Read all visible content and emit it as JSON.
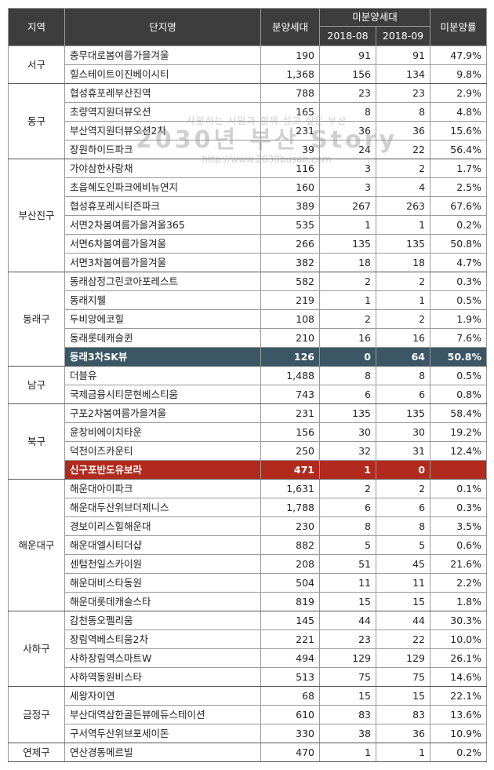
{
  "headers": {
    "region": "지역",
    "complex": "단지명",
    "supply": "분양세대",
    "unsold": "미분양세대",
    "month1": "2018-08",
    "month2": "2018-09",
    "rate": "미분양률"
  },
  "colors": {
    "header_bg": "#3d3d3d",
    "highlight_teal": "#3b5664",
    "highlight_red": "#b22a1e"
  },
  "watermark": {
    "slogan": "사랑하는 사람과 함께 살고 싶은 부산",
    "title": "2030년 부산 Story",
    "url": "http://www.2030busan.com"
  },
  "groups": [
    {
      "region": "서구",
      "rows": [
        {
          "name": "충무대로봄여름가을겨울",
          "supply": "190",
          "m08": "91",
          "m09": "91",
          "rate": "47.9%"
        },
        {
          "name": "힐스테이트이진베이시티",
          "supply": "1,368",
          "m08": "156",
          "m09": "134",
          "rate": "9.8%"
        }
      ]
    },
    {
      "region": "동구",
      "rows": [
        {
          "name": "협성휴포레부산진역",
          "supply": "788",
          "m08": "23",
          "m09": "23",
          "rate": "2.9%"
        },
        {
          "name": "초량역지원더뷰오션",
          "supply": "165",
          "m08": "8",
          "m09": "8",
          "rate": "4.8%"
        },
        {
          "name": "부산역지원더뷰오션2차",
          "supply": "231",
          "m08": "36",
          "m09": "36",
          "rate": "15.6%"
        },
        {
          "name": "장원하이드파크",
          "supply": "39",
          "m08": "24",
          "m09": "22",
          "rate": "56.4%"
        }
      ]
    },
    {
      "region": "부산진구",
      "rows": [
        {
          "name": "가야삼한사랑채",
          "supply": "116",
          "m08": "3",
          "m09": "2",
          "rate": "1.7%"
        },
        {
          "name": "초읍혜도인파크에비뉴연지",
          "supply": "160",
          "m08": "3",
          "m09": "4",
          "rate": "2.5%"
        },
        {
          "name": "협성휴포레시티즌파크",
          "supply": "389",
          "m08": "267",
          "m09": "263",
          "rate": "67.6%"
        },
        {
          "name": "서면2차봄여름가을겨울365",
          "supply": "535",
          "m08": "1",
          "m09": "1",
          "rate": "0.2%"
        },
        {
          "name": "서면6차봄여름가을겨울",
          "supply": "266",
          "m08": "135",
          "m09": "135",
          "rate": "50.8%"
        },
        {
          "name": "서면3차봄여름가을겨울",
          "supply": "382",
          "m08": "18",
          "m09": "18",
          "rate": "4.7%"
        }
      ]
    },
    {
      "region": "동래구",
      "rows": [
        {
          "name": "동래삼정그린코아포레스트",
          "supply": "582",
          "m08": "2",
          "m09": "2",
          "rate": "0.3%"
        },
        {
          "name": "동래지웰",
          "supply": "219",
          "m08": "1",
          "m09": "1",
          "rate": "0.5%"
        },
        {
          "name": "두비앙에코힐",
          "supply": "108",
          "m08": "2",
          "m09": "2",
          "rate": "1.9%"
        },
        {
          "name": "동래롯데캐슬퀸",
          "supply": "210",
          "m08": "16",
          "m09": "16",
          "rate": "7.6%"
        },
        {
          "name": "동래3차SK뷰",
          "supply": "126",
          "m08": "0",
          "m09": "64",
          "rate": "50.8%",
          "hl": "teal"
        }
      ]
    },
    {
      "region": "남구",
      "rows": [
        {
          "name": "더블유",
          "supply": "1,488",
          "m08": "8",
          "m09": "8",
          "rate": "0.5%"
        },
        {
          "name": "국제금융시티문현베스티움",
          "supply": "743",
          "m08": "6",
          "m09": "6",
          "rate": "0.8%"
        }
      ]
    },
    {
      "region": "북구",
      "rows": [
        {
          "name": "구포2차봄여름가을겨울",
          "supply": "231",
          "m08": "135",
          "m09": "135",
          "rate": "58.4%"
        },
        {
          "name": "윤창비에이치타운",
          "supply": "156",
          "m08": "30",
          "m09": "30",
          "rate": "19.2%"
        },
        {
          "name": "덕천이즈카운티",
          "supply": "250",
          "m08": "32",
          "m09": "31",
          "rate": "12.4%"
        },
        {
          "name": "신구포반도유보라",
          "supply": "471",
          "m08": "1",
          "m09": "0",
          "rate": "",
          "hl": "red"
        }
      ]
    },
    {
      "region": "해운대구",
      "rows": [
        {
          "name": "해운대아이파크",
          "supply": "1,631",
          "m08": "2",
          "m09": "2",
          "rate": "0.1%"
        },
        {
          "name": "해운대두산위브더제니스",
          "supply": "1,788",
          "m08": "6",
          "m09": "6",
          "rate": "0.3%"
        },
        {
          "name": "경보이리스힐해운대",
          "supply": "230",
          "m08": "8",
          "m09": "8",
          "rate": "3.5%"
        },
        {
          "name": "해운대엘시티더샵",
          "supply": "882",
          "m08": "5",
          "m09": "5",
          "rate": "0.6%"
        },
        {
          "name": "센텀천일스카이원",
          "supply": "208",
          "m08": "51",
          "m09": "45",
          "rate": "21.6%"
        },
        {
          "name": "해운대비스타동원",
          "supply": "504",
          "m08": "11",
          "m09": "11",
          "rate": "2.2%"
        },
        {
          "name": "해운대롯데캐슬스타",
          "supply": "819",
          "m08": "15",
          "m09": "15",
          "rate": "1.8%"
        }
      ]
    },
    {
      "region": "사하구",
      "rows": [
        {
          "name": "감천동오펠리움",
          "supply": "145",
          "m08": "44",
          "m09": "44",
          "rate": "30.3%"
        },
        {
          "name": "장림역베스티움2차",
          "supply": "221",
          "m08": "23",
          "m09": "22",
          "rate": "10.0%"
        },
        {
          "name": "사하장림역스마트W",
          "supply": "494",
          "m08": "129",
          "m09": "129",
          "rate": "26.1%"
        },
        {
          "name": "사하역동원비스타",
          "supply": "513",
          "m08": "75",
          "m09": "75",
          "rate": "14.6%"
        }
      ]
    },
    {
      "region": "금정구",
      "rows": [
        {
          "name": "세왕자이연",
          "supply": "68",
          "m08": "15",
          "m09": "15",
          "rate": "22.1%"
        },
        {
          "name": "부산대역삼한골든뷰에듀스테이션",
          "supply": "610",
          "m08": "83",
          "m09": "83",
          "rate": "13.6%"
        },
        {
          "name": "구서역두산위브포세이돈",
          "supply": "330",
          "m08": "38",
          "m09": "36",
          "rate": "10.9%"
        }
      ]
    },
    {
      "region": "연제구",
      "rows": [
        {
          "name": "연산경동메르빌",
          "supply": "470",
          "m08": "1",
          "m09": "1",
          "rate": "0.2%"
        }
      ]
    }
  ]
}
